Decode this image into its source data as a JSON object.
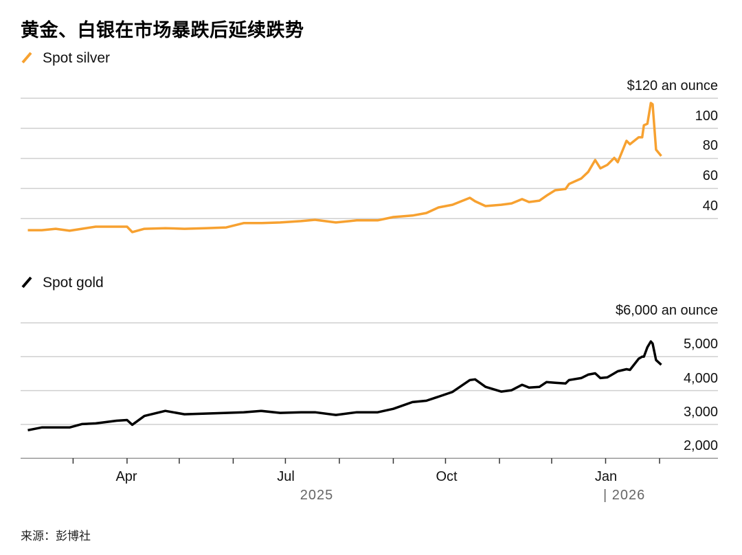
{
  "title": "黄金、白银在市场暴跌后延续跌势",
  "source": "来源：彭博社",
  "chart_data": [
    {
      "type": "line",
      "series": [
        {
          "name": "Spot silver",
          "color": "#f7a130",
          "x": [
            "2025-02-03",
            "2025-02-11",
            "2025-02-19",
            "2025-02-27",
            "2025-03-06",
            "2025-03-14",
            "2025-03-26",
            "2025-04-01",
            "2025-04-04",
            "2025-04-11",
            "2025-04-23",
            "2025-05-04",
            "2025-05-16",
            "2025-05-28",
            "2025-06-07",
            "2025-06-17",
            "2025-06-28",
            "2025-07-10",
            "2025-07-18",
            "2025-07-30",
            "2025-08-11",
            "2025-08-23",
            "2025-09-01",
            "2025-09-12",
            "2025-09-20",
            "2025-09-27",
            "2025-10-05",
            "2025-10-15",
            "2025-10-18",
            "2025-10-24",
            "2025-11-02",
            "2025-11-08",
            "2025-11-14",
            "2025-11-18",
            "2025-11-24",
            "2025-11-28",
            "2025-12-03",
            "2025-12-09",
            "2025-12-11",
            "2025-12-18",
            "2025-12-22",
            "2025-12-26",
            "2025-12-29",
            "2026-01-02",
            "2026-01-06",
            "2026-01-08",
            "2026-01-13",
            "2026-01-15",
            "2026-01-20",
            "2026-01-22",
            "2026-01-23",
            "2026-01-25",
            "2026-01-27",
            "2026-01-28",
            "2026-01-30",
            "2026-02-02"
          ],
          "y": [
            32.3,
            32.3,
            33.2,
            31.9,
            33.2,
            34.6,
            34.6,
            34.6,
            31.0,
            33.2,
            33.6,
            33.2,
            33.6,
            34.1,
            37.0,
            37.0,
            37.4,
            38.3,
            39.2,
            37.4,
            38.8,
            38.8,
            41.0,
            42.0,
            43.7,
            47.4,
            49.2,
            53.8,
            51.5,
            48.3,
            49.2,
            50.1,
            52.9,
            51.0,
            51.9,
            55.2,
            58.8,
            59.7,
            63.0,
            66.6,
            71.0,
            78.9,
            73.4,
            75.7,
            80.3,
            77.5,
            91.7,
            89.4,
            94.0,
            94.0,
            102.0,
            103.0,
            116.8,
            116.0,
            85.8,
            81.6
          ]
        }
      ],
      "y_unit_label": "$120 an ounce",
      "yticks": [
        "100",
        "80",
        "60",
        "40"
      ],
      "ylim": [
        20,
        120
      ],
      "grid": true,
      "legend": "top-left"
    },
    {
      "type": "line",
      "series": [
        {
          "name": "Spot gold",
          "color": "#000000",
          "x": [
            "2025-02-03",
            "2025-02-11",
            "2025-02-19",
            "2025-02-27",
            "2025-03-06",
            "2025-03-14",
            "2025-03-26",
            "2025-04-01",
            "2025-04-04",
            "2025-04-11",
            "2025-04-23",
            "2025-05-04",
            "2025-05-16",
            "2025-05-28",
            "2025-06-07",
            "2025-06-17",
            "2025-06-28",
            "2025-07-10",
            "2025-07-18",
            "2025-07-30",
            "2025-08-11",
            "2025-08-23",
            "2025-09-01",
            "2025-09-12",
            "2025-09-20",
            "2025-09-27",
            "2025-10-05",
            "2025-10-15",
            "2025-10-18",
            "2025-10-24",
            "2025-11-02",
            "2025-11-08",
            "2025-11-14",
            "2025-11-18",
            "2025-11-24",
            "2025-11-28",
            "2025-12-03",
            "2025-12-09",
            "2025-12-11",
            "2025-12-18",
            "2025-12-22",
            "2025-12-26",
            "2025-12-29",
            "2026-01-02",
            "2026-01-06",
            "2026-01-08",
            "2026-01-13",
            "2026-01-15",
            "2026-01-20",
            "2026-01-22",
            "2026-01-23",
            "2026-01-25",
            "2026-01-27",
            "2026-01-28",
            "2026-01-30",
            "2026-02-02"
          ],
          "y": [
            2830,
            2910,
            2910,
            2910,
            3010,
            3030,
            3110,
            3130,
            2990,
            3250,
            3400,
            3300,
            3320,
            3340,
            3360,
            3400,
            3340,
            3360,
            3360,
            3280,
            3360,
            3360,
            3460,
            3660,
            3700,
            3820,
            3960,
            4310,
            4330,
            4110,
            3970,
            4010,
            4170,
            4090,
            4110,
            4250,
            4230,
            4210,
            4310,
            4370,
            4470,
            4510,
            4370,
            4390,
            4510,
            4570,
            4630,
            4610,
            4940,
            5000,
            5000,
            5280,
            5450,
            5390,
            4900,
            4760
          ]
        }
      ],
      "y_unit_label": "$6,000 an ounce",
      "yticks": [
        "5,000",
        "4,000",
        "3,000",
        "2,000"
      ],
      "ylim": [
        2000,
        6000
      ],
      "grid": true,
      "legend": "top-left"
    }
  ],
  "x_axis": {
    "month_labels": [
      "Apr",
      "Jul",
      "Oct",
      "Jan"
    ],
    "year_labels": [
      "2025",
      "| 2026"
    ]
  }
}
